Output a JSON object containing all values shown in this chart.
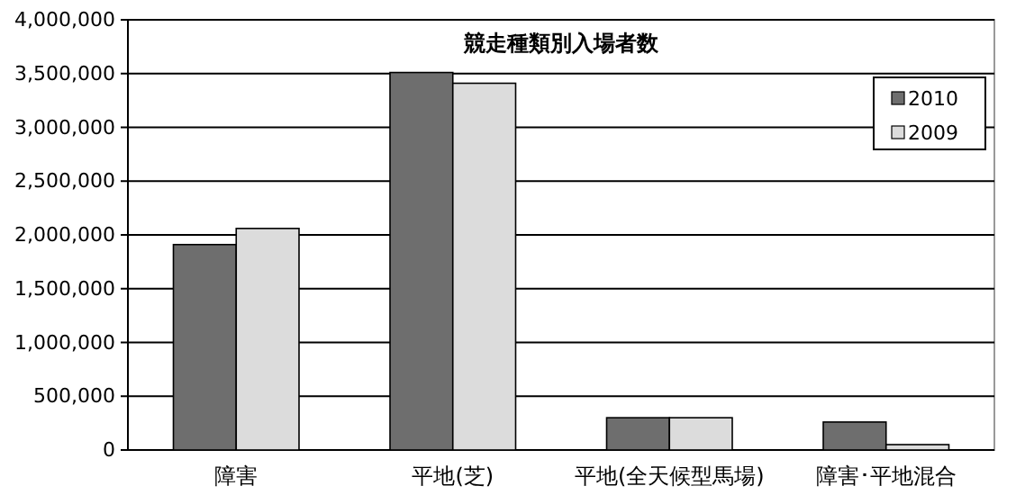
{
  "chart_data": {
    "type": "bar",
    "title": "競走種類別入場者数",
    "categories": [
      "障害",
      "平地(芝)",
      "平地(全天候型馬場)",
      "障害･平地混合"
    ],
    "series": [
      {
        "name": "2010",
        "color": "#6e6e6e",
        "values": [
          1910000,
          3510000,
          300000,
          260000
        ]
      },
      {
        "name": "2009",
        "color": "#dcdcdc",
        "values": [
          2060000,
          3410000,
          300000,
          50000
        ]
      }
    ],
    "ylim": [
      0,
      4000000
    ],
    "yticks": [
      {
        "value": 0,
        "label": "0"
      },
      {
        "value": 500000,
        "label": "500,000"
      },
      {
        "value": 1000000,
        "label": "1,000,000"
      },
      {
        "value": 1500000,
        "label": "1,500,000"
      },
      {
        "value": 2000000,
        "label": "2,000,000"
      },
      {
        "value": 2500000,
        "label": "2,500,000"
      },
      {
        "value": 3000000,
        "label": "3,000,000"
      },
      {
        "value": 3500000,
        "label": "3,500,000"
      },
      {
        "value": 4000000,
        "label": "4,000,000"
      }
    ],
    "grid": "y",
    "legend": "top right"
  }
}
